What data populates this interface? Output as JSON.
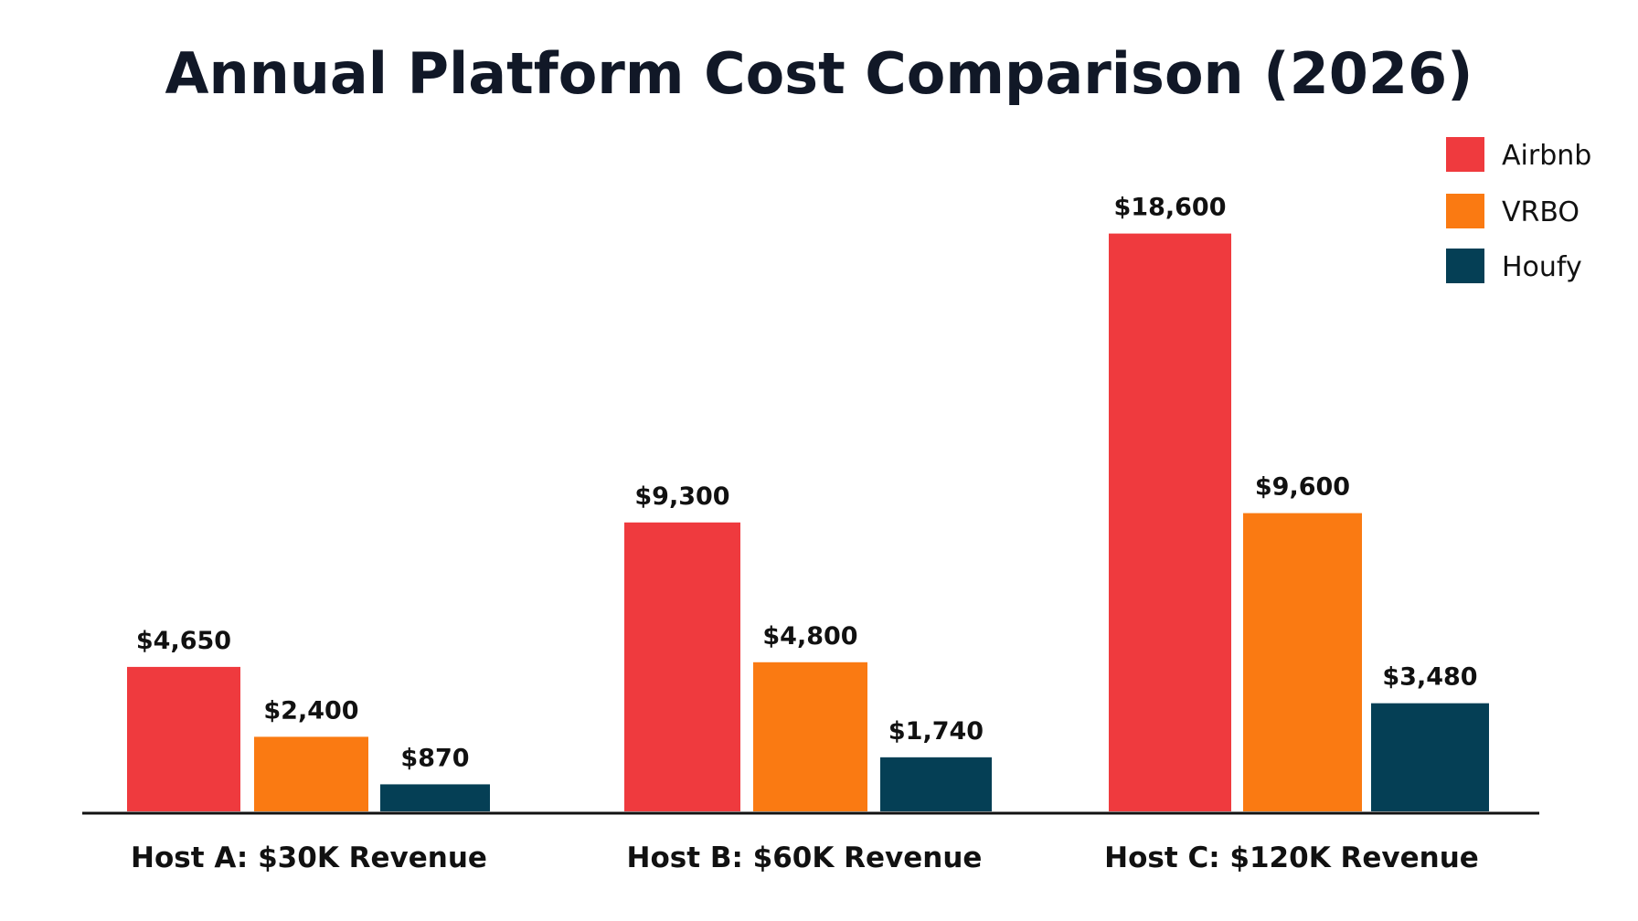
{
  "chart_data": {
    "type": "bar",
    "title": "Annual Platform Cost Comparison (2026)",
    "categories": [
      "Host A: $30K Revenue",
      "Host B: $60K Revenue",
      "Host C: $120K Revenue"
    ],
    "series": [
      {
        "name": "Airbnb",
        "color": "#ef3a3e",
        "values": [
          4650,
          9300,
          18600
        ],
        "labels": [
          "$4,650",
          "$9,300",
          "$18,600"
        ]
      },
      {
        "name": "VRBO",
        "color": "#fa7a12",
        "values": [
          2400,
          4800,
          9600
        ],
        "labels": [
          "$2,400",
          "$4,800",
          "$9,600"
        ]
      },
      {
        "name": "Houfy",
        "color": "#053f55",
        "values": [
          870,
          1740,
          3480
        ],
        "labels": [
          "$870",
          "$1,740",
          "$3,480"
        ]
      }
    ],
    "ylim": [
      0,
      20000
    ],
    "grid": false,
    "legend": "top-right"
  }
}
